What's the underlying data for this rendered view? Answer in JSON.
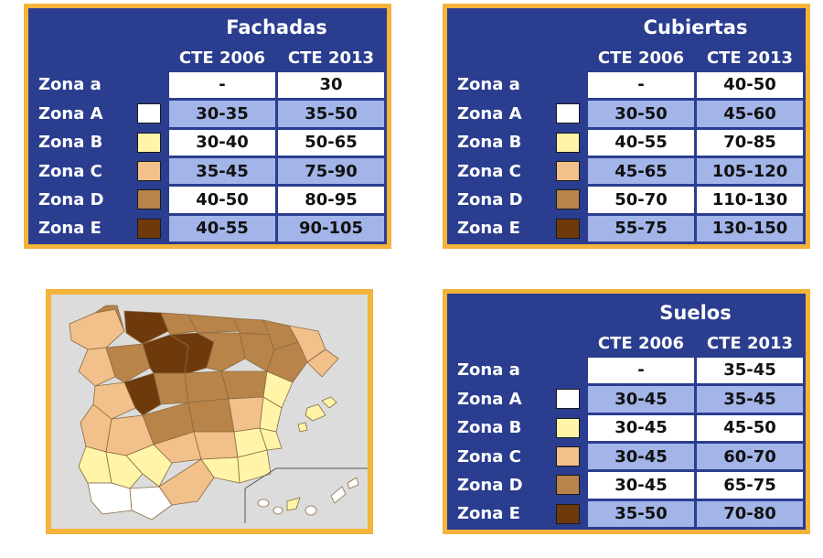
{
  "tables": [
    {
      "title": "Fachadas",
      "headers": [
        "CTE 2006",
        "CTE 2013"
      ],
      "rows": [
        {
          "zone": "Zona a",
          "v2006": "-",
          "v2013": "30"
        },
        {
          "zone": "Zona A",
          "v2006": "30-35",
          "v2013": "35-50"
        },
        {
          "zone": "Zona B",
          "v2006": "30-40",
          "v2013": "50-65"
        },
        {
          "zone": "Zona C",
          "v2006": "35-45",
          "v2013": "75-90"
        },
        {
          "zone": "Zona D",
          "v2006": "40-50",
          "v2013": "80-95"
        },
        {
          "zone": "Zona E",
          "v2006": "40-55",
          "v2013": "90-105"
        }
      ]
    },
    {
      "title": "Cubiertas",
      "headers": [
        "CTE 2006",
        "CTE 2013"
      ],
      "rows": [
        {
          "zone": "Zona a",
          "v2006": "-",
          "v2013": "40-50"
        },
        {
          "zone": "Zona A",
          "v2006": "30-50",
          "v2013": "45-60"
        },
        {
          "zone": "Zona B",
          "v2006": "40-55",
          "v2013": "70-85"
        },
        {
          "zone": "Zona C",
          "v2006": "45-65",
          "v2013": "105-120"
        },
        {
          "zone": "Zona D",
          "v2006": "50-70",
          "v2013": "110-130"
        },
        {
          "zone": "Zona E",
          "v2006": "55-75",
          "v2013": "130-150"
        }
      ]
    },
    {
      "title": "Suelos",
      "headers": [
        "CTE 2006",
        "CTE 2013"
      ],
      "rows": [
        {
          "zone": "Zona a",
          "v2006": "-",
          "v2013": "35-45"
        },
        {
          "zone": "Zona A",
          "v2006": "30-45",
          "v2013": "35-45"
        },
        {
          "zone": "Zona B",
          "v2006": "30-45",
          "v2013": "45-50"
        },
        {
          "zone": "Zona C",
          "v2006": "30-45",
          "v2013": "60-70"
        },
        {
          "zone": "Zona D",
          "v2006": "30-45",
          "v2013": "65-75"
        },
        {
          "zone": "Zona E",
          "v2006": "35-50",
          "v2013": "70-80"
        }
      ]
    }
  ],
  "zone_colors": {
    "Zona A": "#ffffff",
    "Zona B": "#fff4a8",
    "Zona C": "#f2c08a",
    "Zona D": "#b8844a",
    "Zona E": "#6e3a0c"
  },
  "colors": {
    "frame": "#f4b33a",
    "header": "#2a3d8f",
    "row_alt": "#a2b4e8",
    "map_bg": "#dcdcdc"
  }
}
